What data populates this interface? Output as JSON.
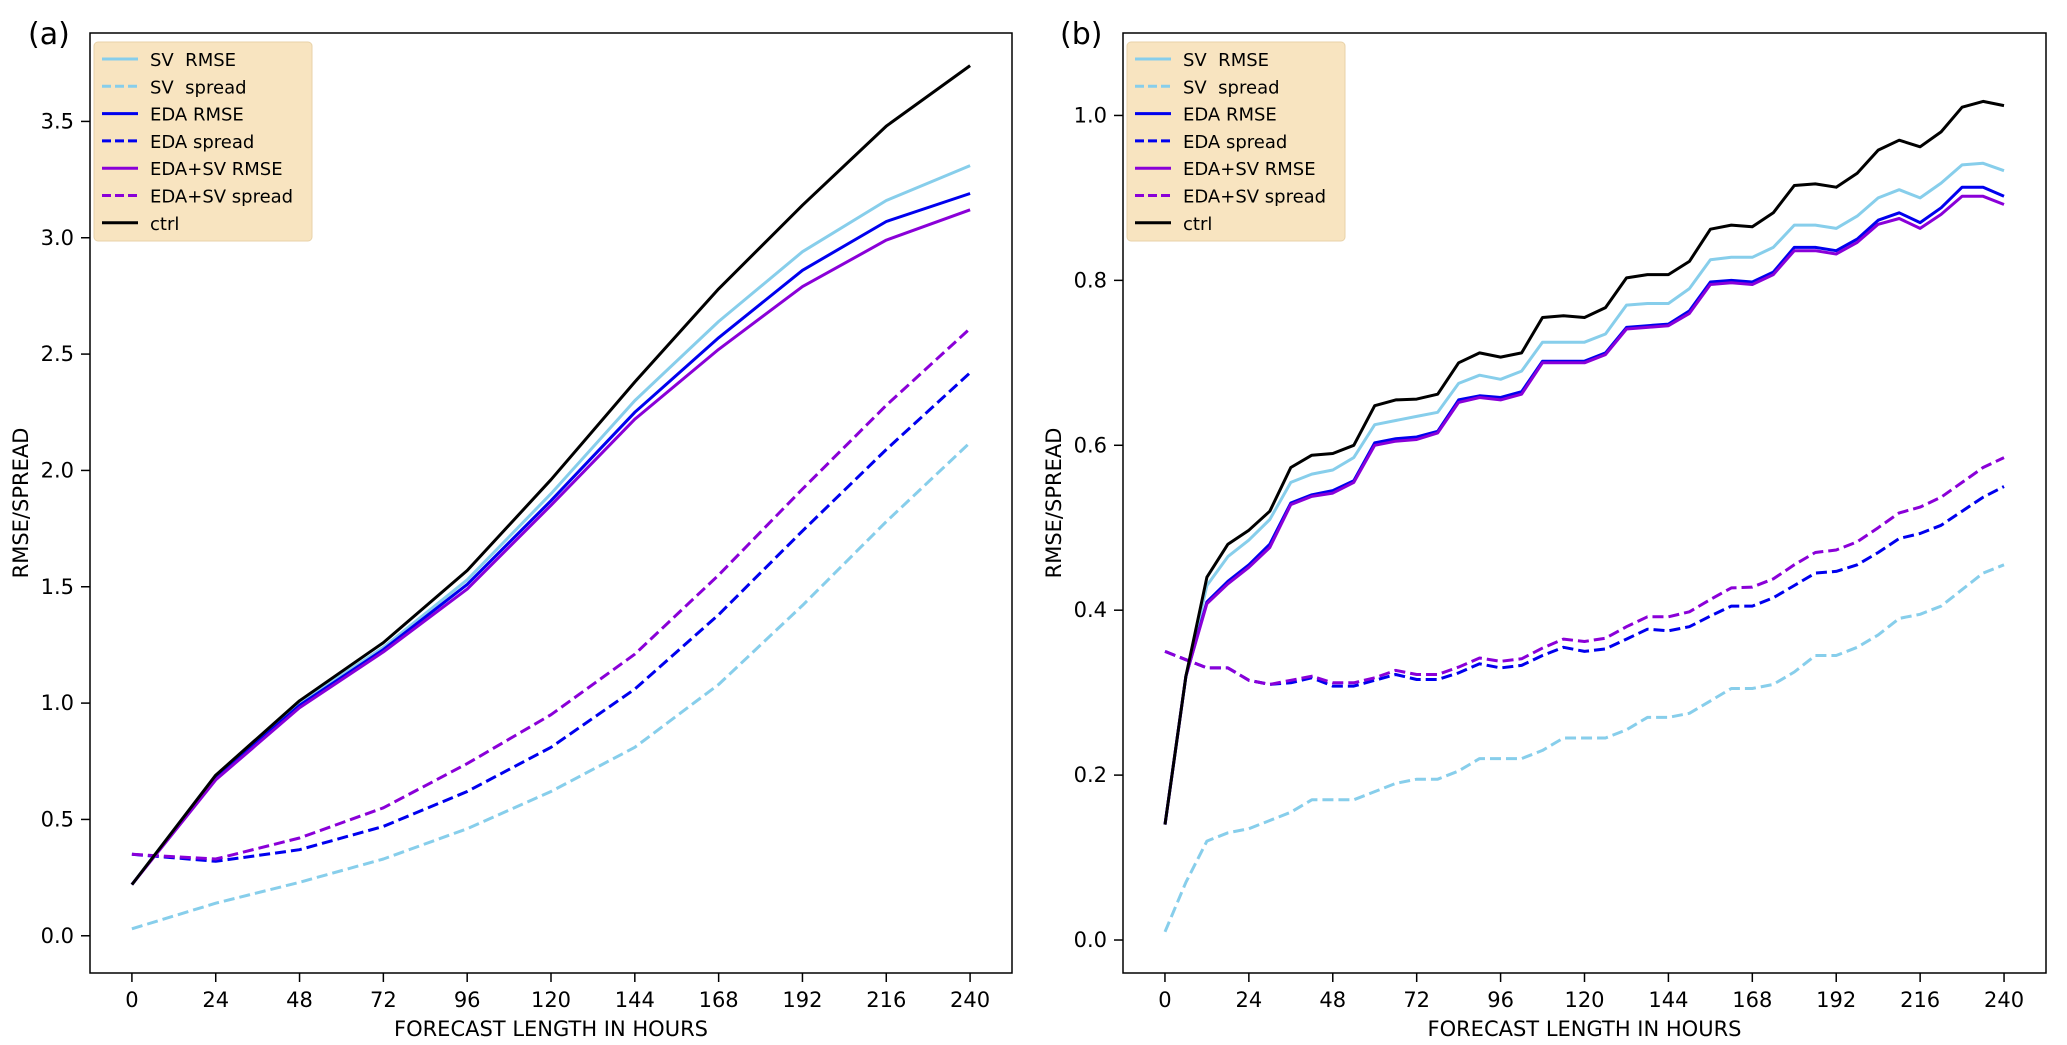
{
  "chart_data": [
    {
      "type": "line",
      "panel_label": "(a)",
      "title": "",
      "xlabel": "FORECAST LENGTH IN HOURS",
      "ylabel": "RMSE/SPREAD",
      "xlim": [
        -12,
        252
      ],
      "ylim": [
        -0.16,
        3.88
      ],
      "xticks": [
        0,
        24,
        48,
        72,
        96,
        120,
        144,
        168,
        192,
        216,
        240
      ],
      "xtick_labels": [
        "0",
        "24",
        "48",
        "72",
        "96",
        "120",
        "144",
        "168",
        "192",
        "216",
        "240"
      ],
      "yticks": [
        0.0,
        0.5,
        1.0,
        1.5,
        2.0,
        2.5,
        3.0,
        3.5
      ],
      "ytick_labels": [
        "0.0",
        "0.5",
        "1.0",
        "1.5",
        "2.0",
        "2.5",
        "3.0",
        "3.5"
      ],
      "legend": "top-left",
      "x": [
        0,
        24,
        48,
        72,
        96,
        120,
        144,
        168,
        192,
        216,
        240
      ],
      "series": [
        {
          "name": "SV  RMSE",
          "color": "#87ceeb",
          "dash": false,
          "values": [
            0.22,
            0.69,
            1.0,
            1.24,
            1.53,
            1.9,
            2.3,
            2.64,
            2.94,
            3.16,
            3.31
          ]
        },
        {
          "name": "SV  spread",
          "color": "#87ceeb",
          "dash": true,
          "values": [
            0.03,
            0.14,
            0.23,
            0.33,
            0.46,
            0.62,
            0.81,
            1.08,
            1.42,
            1.78,
            2.12
          ]
        },
        {
          "name": "EDA RMSE",
          "color": "#0000ee",
          "dash": false,
          "values": [
            0.22,
            0.68,
            0.99,
            1.23,
            1.51,
            1.87,
            2.25,
            2.57,
            2.86,
            3.07,
            3.19
          ]
        },
        {
          "name": "EDA spread",
          "color": "#0000ee",
          "dash": true,
          "values": [
            0.35,
            0.32,
            0.37,
            0.47,
            0.62,
            0.81,
            1.06,
            1.38,
            1.74,
            2.09,
            2.42
          ]
        },
        {
          "name": "EDA+SV RMSE",
          "color": "#8a00d8",
          "dash": false,
          "values": [
            0.22,
            0.67,
            0.98,
            1.22,
            1.49,
            1.85,
            2.22,
            2.52,
            2.79,
            2.99,
            3.12
          ]
        },
        {
          "name": "EDA+SV spread",
          "color": "#8a00d8",
          "dash": true,
          "values": [
            0.35,
            0.33,
            0.42,
            0.55,
            0.74,
            0.95,
            1.21,
            1.55,
            1.92,
            2.28,
            2.61
          ]
        },
        {
          "name": "ctrl",
          "color": "#000000",
          "dash": false,
          "values": [
            0.22,
            0.69,
            1.01,
            1.26,
            1.57,
            1.96,
            2.38,
            2.78,
            3.14,
            3.48,
            3.74
          ]
        }
      ]
    },
    {
      "type": "line",
      "panel_label": "(b)",
      "title": "",
      "xlabel": "FORECAST LENGTH IN HOURS",
      "ylabel": "RMSE/SPREAD",
      "xlim": [
        -12,
        252
      ],
      "ylim": [
        -0.04,
        1.1
      ],
      "xticks": [
        0,
        24,
        48,
        72,
        96,
        120,
        144,
        168,
        192,
        216,
        240
      ],
      "xtick_labels": [
        "0",
        "24",
        "48",
        "72",
        "96",
        "120",
        "144",
        "168",
        "192",
        "216",
        "240"
      ],
      "yticks": [
        0.0,
        0.2,
        0.4,
        0.6,
        0.8,
        1.0
      ],
      "ytick_labels": [
        "0.0",
        "0.2",
        "0.4",
        "0.6",
        "0.8",
        "1.0"
      ],
      "legend": "top-left",
      "x": [
        0,
        6,
        12,
        18,
        24,
        30,
        36,
        42,
        48,
        54,
        60,
        66,
        72,
        78,
        84,
        90,
        96,
        102,
        108,
        114,
        120,
        126,
        132,
        138,
        144,
        150,
        156,
        162,
        168,
        174,
        180,
        186,
        192,
        198,
        204,
        210,
        216,
        222,
        228,
        234,
        240
      ],
      "series": [
        {
          "name": "SV  RMSE",
          "color": "#87ceeb",
          "dash": false,
          "values": [
            0.14,
            0.32,
            0.43,
            0.465,
            0.485,
            0.51,
            0.555,
            0.565,
            0.57,
            0.585,
            0.625,
            0.63,
            0.635,
            0.64,
            0.675,
            0.685,
            0.68,
            0.69,
            0.725,
            0.725,
            0.725,
            0.735,
            0.77,
            0.772,
            0.772,
            0.79,
            0.825,
            0.828,
            0.828,
            0.84,
            0.867,
            0.867,
            0.863,
            0.878,
            0.9,
            0.91,
            0.9,
            0.918,
            0.94,
            0.942,
            0.933
          ]
        },
        {
          "name": "SV  spread",
          "color": "#87ceeb",
          "dash": true,
          "values": [
            0.01,
            0.07,
            0.12,
            0.13,
            0.135,
            0.145,
            0.155,
            0.17,
            0.17,
            0.17,
            0.18,
            0.19,
            0.195,
            0.195,
            0.205,
            0.22,
            0.22,
            0.22,
            0.23,
            0.245,
            0.245,
            0.245,
            0.255,
            0.27,
            0.27,
            0.275,
            0.29,
            0.305,
            0.305,
            0.31,
            0.325,
            0.345,
            0.345,
            0.355,
            0.37,
            0.39,
            0.395,
            0.405,
            0.425,
            0.445,
            0.455
          ]
        },
        {
          "name": "EDA RMSE",
          "color": "#0000ee",
          "dash": false,
          "values": [
            0.14,
            0.32,
            0.41,
            0.435,
            0.455,
            0.48,
            0.53,
            0.54,
            0.545,
            0.557,
            0.603,
            0.608,
            0.61,
            0.617,
            0.655,
            0.66,
            0.658,
            0.665,
            0.702,
            0.702,
            0.702,
            0.712,
            0.743,
            0.745,
            0.747,
            0.763,
            0.798,
            0.8,
            0.798,
            0.81,
            0.84,
            0.84,
            0.836,
            0.85,
            0.873,
            0.882,
            0.87,
            0.888,
            0.913,
            0.913,
            0.902
          ]
        },
        {
          "name": "EDA spread",
          "color": "#0000ee",
          "dash": true,
          "values": [
            0.35,
            0.34,
            0.33,
            0.33,
            0.315,
            0.31,
            0.312,
            0.318,
            0.308,
            0.308,
            0.315,
            0.322,
            0.316,
            0.316,
            0.324,
            0.335,
            0.33,
            0.333,
            0.345,
            0.355,
            0.35,
            0.353,
            0.365,
            0.377,
            0.375,
            0.38,
            0.393,
            0.405,
            0.405,
            0.415,
            0.43,
            0.445,
            0.447,
            0.455,
            0.47,
            0.487,
            0.493,
            0.503,
            0.52,
            0.537,
            0.55
          ]
        },
        {
          "name": "EDA+SV RMSE",
          "color": "#8a00d8",
          "dash": false,
          "values": [
            0.14,
            0.32,
            0.408,
            0.432,
            0.452,
            0.476,
            0.528,
            0.538,
            0.542,
            0.555,
            0.6,
            0.605,
            0.607,
            0.615,
            0.652,
            0.658,
            0.655,
            0.662,
            0.7,
            0.7,
            0.7,
            0.71,
            0.741,
            0.743,
            0.745,
            0.76,
            0.795,
            0.797,
            0.795,
            0.807,
            0.836,
            0.836,
            0.832,
            0.846,
            0.868,
            0.875,
            0.863,
            0.88,
            0.902,
            0.902,
            0.892
          ]
        },
        {
          "name": "EDA+SV spread",
          "color": "#8a00d8",
          "dash": true,
          "values": [
            0.35,
            0.34,
            0.33,
            0.33,
            0.315,
            0.31,
            0.315,
            0.32,
            0.312,
            0.312,
            0.318,
            0.327,
            0.322,
            0.322,
            0.331,
            0.342,
            0.338,
            0.341,
            0.354,
            0.365,
            0.362,
            0.366,
            0.38,
            0.392,
            0.392,
            0.398,
            0.413,
            0.427,
            0.428,
            0.438,
            0.455,
            0.47,
            0.473,
            0.483,
            0.5,
            0.518,
            0.525,
            0.537,
            0.555,
            0.573,
            0.585
          ]
        },
        {
          "name": "ctrl",
          "color": "#000000",
          "dash": false,
          "values": [
            0.14,
            0.32,
            0.44,
            0.48,
            0.497,
            0.52,
            0.573,
            0.588,
            0.59,
            0.6,
            0.648,
            0.655,
            0.656,
            0.662,
            0.7,
            0.712,
            0.707,
            0.712,
            0.755,
            0.757,
            0.755,
            0.767,
            0.803,
            0.807,
            0.807,
            0.823,
            0.862,
            0.867,
            0.865,
            0.882,
            0.915,
            0.917,
            0.913,
            0.93,
            0.958,
            0.97,
            0.962,
            0.98,
            1.01,
            1.017,
            1.012
          ]
        }
      ]
    }
  ]
}
